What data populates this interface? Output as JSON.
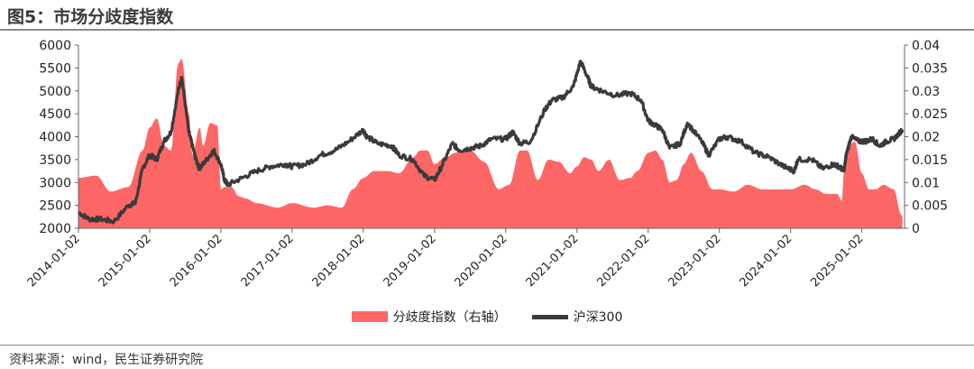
{
  "title": "图5：市场分歧度指数",
  "source": "资料来源：wind，民生证券研究院",
  "colors": {
    "area": "#ff6666",
    "line": "#3a3a3a"
  },
  "chart_data": {
    "type": "line",
    "title": "图5：市场分歧度指数",
    "x_tick_labels": [
      "2014-01-02",
      "2015-01-02",
      "2016-01-02",
      "2017-01-02",
      "2018-01-02",
      "2019-01-02",
      "2020-01-02",
      "2021-01-02",
      "2022-01-02",
      "2023-01-02",
      "2024-01-02",
      "2025-01-02"
    ],
    "y_left": {
      "ylim": [
        2000,
        6000
      ],
      "ticks": [
        "6000",
        "5500",
        "5000",
        "4500",
        "4000",
        "3500",
        "3000",
        "2500",
        "2000"
      ]
    },
    "y_right": {
      "ylim": [
        0,
        0.04
      ],
      "ticks": [
        "0.04",
        "0.035",
        "0.03",
        "0.025",
        "0.02",
        "0.015",
        "0.01",
        "0.005",
        "0"
      ]
    },
    "series": [
      {
        "name": "分歧度指数（右轴）",
        "type": "area",
        "axis": "right",
        "x": [
          2014.0,
          2014.25,
          2014.45,
          2014.7,
          2014.9,
          2015.0,
          2015.1,
          2015.2,
          2015.3,
          2015.4,
          2015.45,
          2015.55,
          2015.6,
          2015.7,
          2015.75,
          2015.85,
          2015.95,
          2016.0,
          2016.05,
          2016.15,
          2016.25,
          2016.35,
          2016.5,
          2016.8,
          2017.0,
          2017.3,
          2017.5,
          2017.7,
          2017.85,
          2018.0,
          2018.15,
          2018.35,
          2018.5,
          2018.7,
          2018.8,
          2018.9,
          2019.0,
          2019.15,
          2019.3,
          2019.5,
          2019.7,
          2019.9,
          2020.05,
          2020.2,
          2020.3,
          2020.45,
          2020.6,
          2020.75,
          2020.9,
          2021.0,
          2021.1,
          2021.2,
          2021.3,
          2021.45,
          2021.6,
          2021.75,
          2021.85,
          2022.0,
          2022.1,
          2022.2,
          2022.3,
          2022.4,
          2022.5,
          2022.6,
          2022.75,
          2022.9,
          2023.0,
          2023.2,
          2023.4,
          2023.6,
          2023.8,
          2024.0,
          2024.2,
          2024.35,
          2024.5,
          2024.65,
          2024.72,
          2024.75,
          2024.8,
          2024.9,
          2025.0,
          2025.1,
          2025.2,
          2025.3,
          2025.45,
          2025.55,
          2025.57
        ],
        "values": [
          0.011,
          0.0115,
          0.008,
          0.009,
          0.017,
          0.022,
          0.024,
          0.018,
          0.017,
          0.036,
          0.037,
          0.025,
          0.016,
          0.022,
          0.018,
          0.023,
          0.0225,
          0.0085,
          0.009,
          0.009,
          0.007,
          0.0065,
          0.0055,
          0.0045,
          0.0055,
          0.0045,
          0.005,
          0.0045,
          0.0085,
          0.011,
          0.0125,
          0.0125,
          0.012,
          0.0155,
          0.017,
          0.017,
          0.014,
          0.0155,
          0.0165,
          0.017,
          0.0145,
          0.0085,
          0.0095,
          0.017,
          0.017,
          0.0105,
          0.015,
          0.0145,
          0.012,
          0.0135,
          0.0155,
          0.015,
          0.0125,
          0.015,
          0.0105,
          0.011,
          0.0125,
          0.0165,
          0.017,
          0.015,
          0.01,
          0.0105,
          0.014,
          0.0165,
          0.0125,
          0.0085,
          0.0085,
          0.008,
          0.0095,
          0.0085,
          0.0085,
          0.0085,
          0.0095,
          0.0085,
          0.0075,
          0.0075,
          0.006,
          0.0125,
          0.0175,
          0.019,
          0.012,
          0.0085,
          0.0085,
          0.0095,
          0.0085,
          0.003,
          0.0025
        ]
      },
      {
        "name": "沪深300",
        "type": "line",
        "axis": "left",
        "x": [
          2014.0,
          2014.15,
          2014.3,
          2014.5,
          2014.7,
          2014.8,
          2014.9,
          2015.0,
          2015.1,
          2015.2,
          2015.3,
          2015.4,
          2015.45,
          2015.55,
          2015.6,
          2015.65,
          2015.7,
          2015.8,
          2015.9,
          2016.0,
          2016.05,
          2016.1,
          2016.3,
          2016.5,
          2016.7,
          2016.9,
          2017.0,
          2017.2,
          2017.4,
          2017.6,
          2017.8,
          2018.0,
          2018.05,
          2018.2,
          2018.4,
          2018.5,
          2018.7,
          2018.85,
          2019.0,
          2019.1,
          2019.25,
          2019.35,
          2019.5,
          2019.65,
          2019.8,
          2020.0,
          2020.1,
          2020.2,
          2020.35,
          2020.55,
          2020.65,
          2020.8,
          2020.95,
          2021.05,
          2021.15,
          2021.2,
          2021.35,
          2021.55,
          2021.75,
          2021.9,
          2022.0,
          2022.1,
          2022.2,
          2022.3,
          2022.45,
          2022.55,
          2022.75,
          2022.85,
          2023.0,
          2023.1,
          2023.3,
          2023.5,
          2023.7,
          2023.9,
          2024.05,
          2024.1,
          2024.3,
          2024.45,
          2024.6,
          2024.68,
          2024.75,
          2024.78,
          2024.85,
          2024.95,
          2025.05,
          2025.15,
          2025.25,
          2025.35,
          2025.45,
          2025.57
        ],
        "values": [
          2350,
          2200,
          2200,
          2150,
          2500,
          2550,
          3300,
          3600,
          3500,
          3900,
          4100,
          5000,
          5300,
          4100,
          3800,
          3500,
          3300,
          3500,
          3700,
          3400,
          3050,
          2950,
          3100,
          3250,
          3350,
          3400,
          3350,
          3400,
          3600,
          3700,
          3900,
          4150,
          4000,
          3850,
          3800,
          3600,
          3500,
          3150,
          3050,
          3350,
          3850,
          3700,
          3750,
          3800,
          3950,
          3950,
          4100,
          3850,
          3900,
          4600,
          4800,
          4850,
          5100,
          5650,
          5300,
          5100,
          5000,
          4900,
          4950,
          4800,
          4350,
          4250,
          4150,
          3750,
          3850,
          4300,
          3900,
          3600,
          3950,
          4000,
          3900,
          3650,
          3550,
          3350,
          3250,
          3500,
          3500,
          3300,
          3400,
          3350,
          3250,
          3600,
          4000,
          3900,
          3900,
          3950,
          3800,
          3900,
          3950,
          4150
        ]
      }
    ]
  }
}
